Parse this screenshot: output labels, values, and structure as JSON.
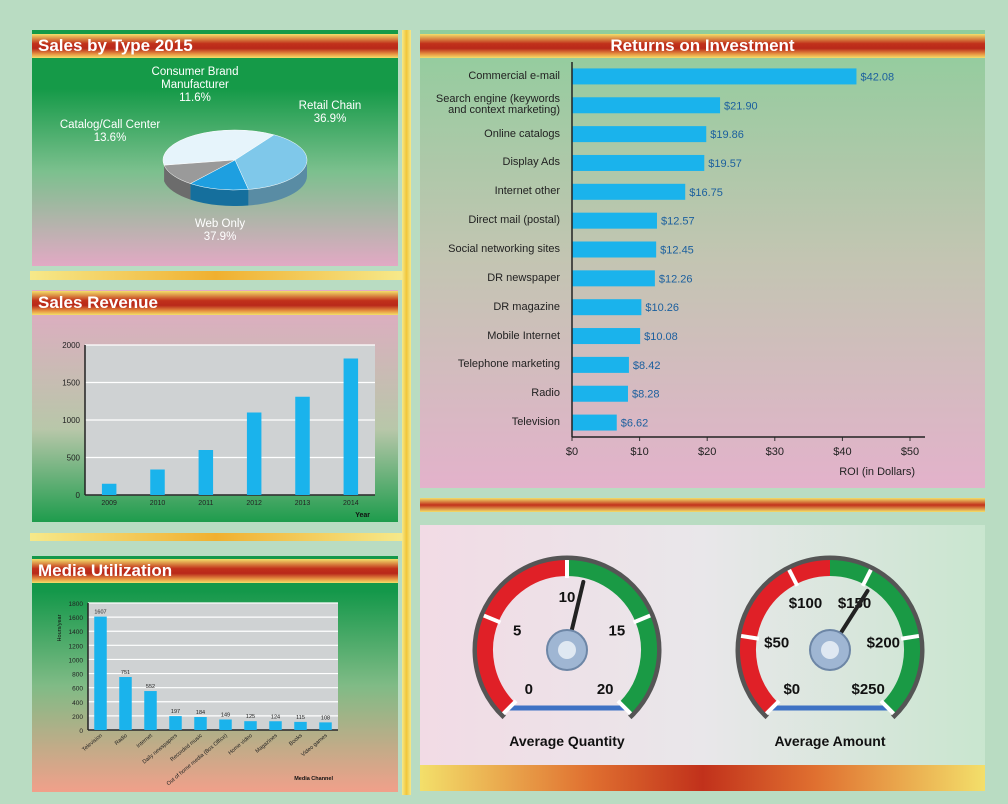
{
  "chart_data": [
    {
      "type": "pie",
      "title": "Sales by Type 2015",
      "categories": [
        "Retail Chain",
        "Web Only",
        "Catalog/Call Center",
        "Consumer Brand Manufacturer"
      ],
      "values": [
        36.9,
        37.9,
        13.6,
        11.6
      ],
      "value_labels": [
        "36.9%",
        "37.9%",
        "13.6%",
        "11.6%"
      ],
      "colors": [
        "#e6f4fb",
        "#7fc8ea",
        "#1e9fe0",
        "#9a9a9a"
      ]
    },
    {
      "type": "bar",
      "title": "Sales Revenue",
      "categories": [
        "2009",
        "2010",
        "2011",
        "2012",
        "2013",
        "2014"
      ],
      "values": [
        150,
        340,
        600,
        1100,
        1310,
        1820
      ],
      "color": "#1ab3ec",
      "ylim": [
        0,
        2000
      ],
      "yticks": [
        0,
        500,
        1000,
        1500,
        2000
      ],
      "xlabel": "Year",
      "grid": true
    },
    {
      "type": "bar",
      "title": "Media Utilization",
      "categories": [
        "Television",
        "Radio",
        "Internet",
        "Daily newspapers",
        "Recorded music",
        "Out of home media (Box Office)",
        "Home video",
        "Magazines",
        "Books",
        "Video games"
      ],
      "values": [
        1607,
        751,
        552,
        197,
        184,
        149,
        125,
        124,
        115,
        108
      ],
      "color": "#1ab3ec",
      "ylim": [
        0,
        1800
      ],
      "yticks": [
        0,
        200,
        400,
        600,
        800,
        1000,
        1200,
        1400,
        1600,
        1800
      ],
      "xlabel": "Media Channel",
      "ylabel": "Hours/year",
      "grid": true
    },
    {
      "type": "hbar",
      "title": "Returns on Investment",
      "categories": [
        "Commercial e-mail",
        "Search engine (keywords and context marketing)",
        "Online catalogs",
        "Display Ads",
        "Internet other",
        "Direct mail (postal)",
        "Social networking sites",
        "DR newspaper",
        "DR magazine",
        "Mobile Internet",
        "Telephone marketing",
        "Radio",
        "Television"
      ],
      "values": [
        42.08,
        21.9,
        19.86,
        19.57,
        16.75,
        12.57,
        12.45,
        12.26,
        10.26,
        10.08,
        8.42,
        8.28,
        6.62
      ],
      "value_labels": [
        "$42.08",
        "$21.90",
        "$19.86",
        "$19.57",
        "$16.75",
        "$12.57",
        "$12.45",
        "$12.26",
        "$10.26",
        "$10.08",
        "$8.42",
        "$8.28",
        "$6.62"
      ],
      "color": "#1ab3ec",
      "xlim": [
        0,
        50
      ],
      "xticks": [
        {
          "value": 0,
          "label": "$0"
        },
        {
          "value": 10,
          "label": "$10"
        },
        {
          "value": 20,
          "label": "$20"
        },
        {
          "value": 30,
          "label": "$30"
        },
        {
          "value": 40,
          "label": "$40"
        },
        {
          "value": 50,
          "label": "$50"
        }
      ],
      "xlabel": "ROI (in Dollars)"
    },
    {
      "type": "gauge",
      "title": "Average Quantity",
      "value": 11,
      "ylim": [
        0,
        20
      ],
      "yticks": [
        0,
        5,
        10,
        15,
        20
      ]
    },
    {
      "type": "gauge",
      "title": "Average Amount",
      "value": 155,
      "ylim": [
        0,
        250
      ],
      "yticks": [
        {
          "value": 0,
          "label": "$0"
        },
        {
          "value": 50,
          "label": "$50"
        },
        {
          "value": 100,
          "label": "$100"
        },
        {
          "value": 150,
          "label": "$150"
        },
        {
          "value": 200,
          "label": "$200"
        },
        {
          "value": 250,
          "label": "$250"
        }
      ]
    }
  ]
}
